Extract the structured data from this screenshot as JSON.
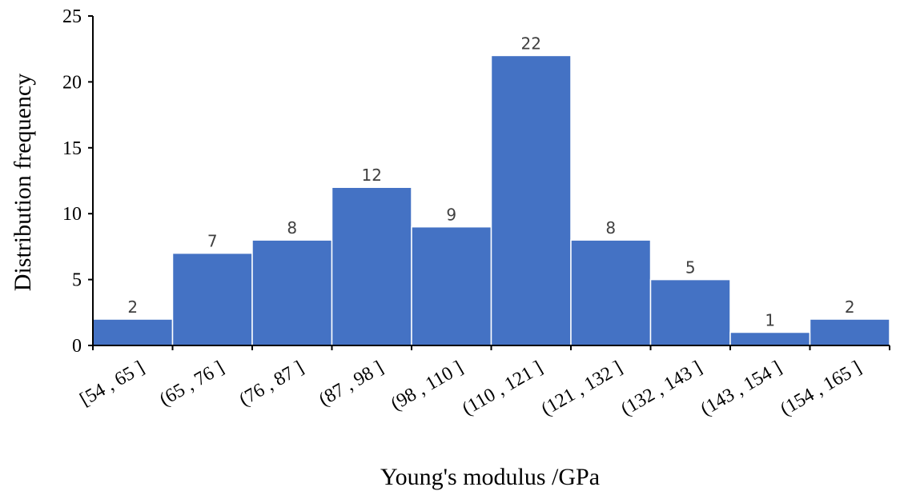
{
  "chart_data": {
    "type": "bar",
    "xlabel": "Young's modulus /GPa",
    "ylabel": "Distribution frequency",
    "ylim": [
      0,
      25
    ],
    "yticks": [
      0,
      5,
      10,
      15,
      20,
      25
    ],
    "categories": [
      "[54 , 65 ]",
      "(65 , 76 ]",
      "(76 , 87 ]",
      "(87 , 98 ]",
      "(98 , 110 ]",
      "(110 , 121 ]",
      "(121 , 132 ]",
      "(132 , 143 ]",
      "(143 , 154 ]",
      "(154 , 165 ]"
    ],
    "values": [
      2,
      7,
      8,
      12,
      9,
      22,
      8,
      5,
      1,
      2
    ],
    "data_labels": [
      "2",
      "7",
      "8",
      "12",
      "9",
      "22",
      "8",
      "5",
      "1",
      "2"
    ],
    "bar_color": "#4472C4",
    "grid": false,
    "legend": "none"
  }
}
